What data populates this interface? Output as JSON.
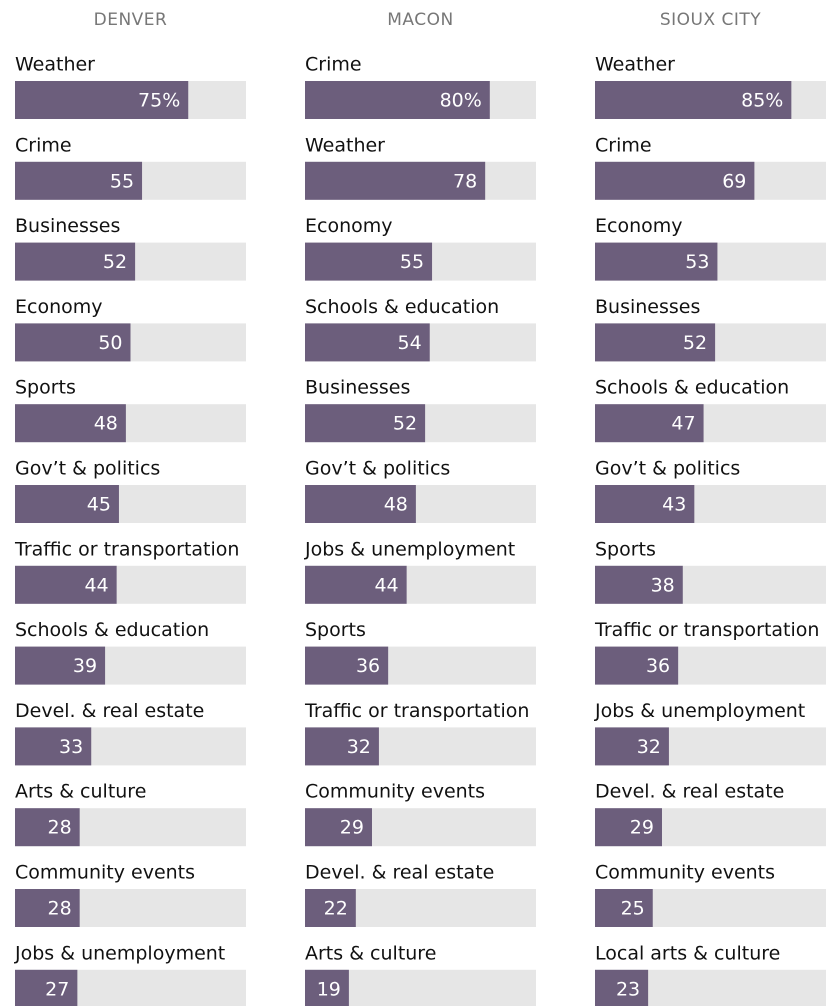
{
  "chart_data": [
    {
      "type": "bar",
      "title": "DENVER",
      "color": "#6c5e7c",
      "track_color": "#e6e6e6",
      "xlim": [
        0,
        100
      ],
      "categories": [
        "Weather",
        "Crime",
        "Businesses",
        "Economy",
        "Sports",
        "Gov’t & politics",
        "Traffic or transportation",
        "Schools & education",
        "Devel. & real estate",
        "Arts & culture",
        "Community events",
        "Jobs & unemployment"
      ],
      "values": [
        75,
        55,
        52,
        50,
        48,
        45,
        44,
        39,
        33,
        28,
        28,
        27
      ],
      "value_labels": [
        "75%",
        "55",
        "52",
        "50",
        "48",
        "45",
        "44",
        "39",
        "33",
        "28",
        "28",
        "27"
      ]
    },
    {
      "type": "bar",
      "title": "MACON",
      "color": "#6c5e7c",
      "track_color": "#e6e6e6",
      "xlim": [
        0,
        100
      ],
      "categories": [
        "Crime",
        "Weather",
        "Economy",
        "Schools & education",
        "Businesses",
        "Gov’t & politics",
        "Jobs & unemployment",
        "Sports",
        "Traffic or transportation",
        "Community events",
        "Devel. & real estate",
        "Arts & culture"
      ],
      "values": [
        80,
        78,
        55,
        54,
        52,
        48,
        44,
        36,
        32,
        29,
        22,
        19
      ],
      "value_labels": [
        "80%",
        "78",
        "55",
        "54",
        "52",
        "48",
        "44",
        "36",
        "32",
        "29",
        "22",
        "19"
      ]
    },
    {
      "type": "bar",
      "title": "SIOUX CITY",
      "color": "#6c5e7c",
      "track_color": "#e6e6e6",
      "xlim": [
        0,
        100
      ],
      "categories": [
        "Weather",
        "Crime",
        "Economy",
        "Businesses",
        "Schools & education",
        "Gov’t & politics",
        "Sports",
        "Traffic or transportation",
        "Jobs & unemployment",
        "Devel. & real estate",
        "Community events",
        "Local arts & culture"
      ],
      "values": [
        85,
        69,
        53,
        52,
        47,
        43,
        38,
        36,
        32,
        29,
        25,
        23
      ],
      "value_labels": [
        "85%",
        "69",
        "53",
        "52",
        "47",
        "43",
        "38",
        "36",
        "32",
        "29",
        "25",
        "23"
      ]
    }
  ]
}
